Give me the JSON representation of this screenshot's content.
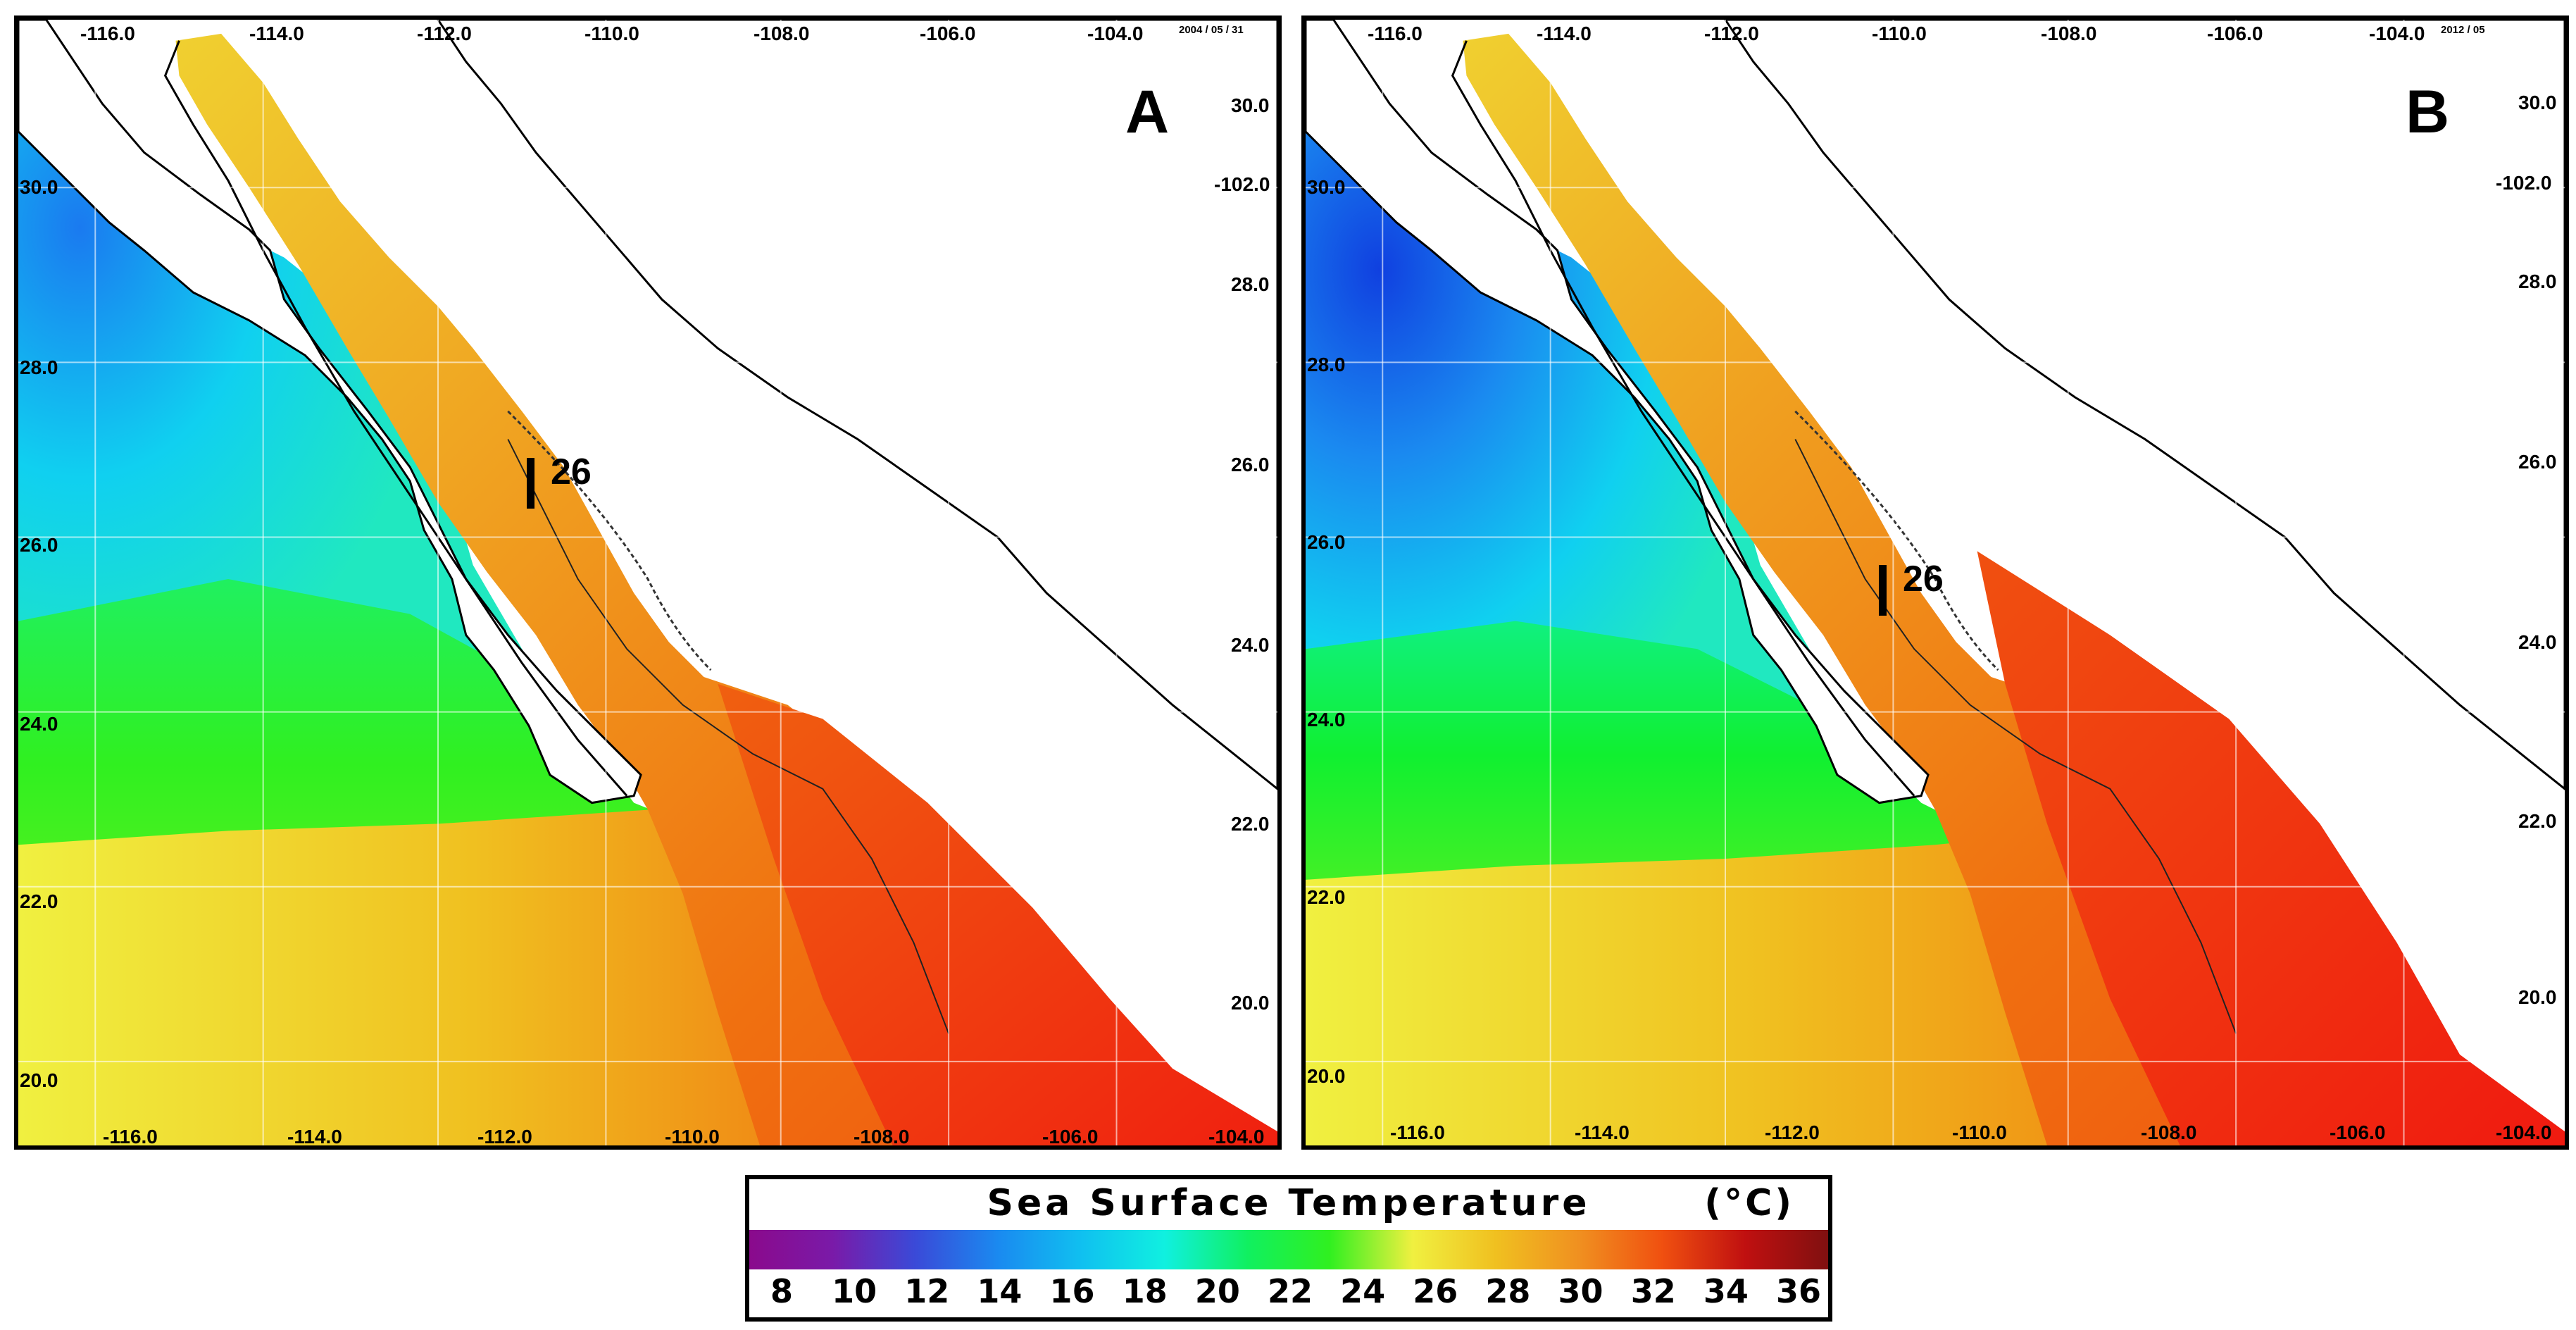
{
  "panels": [
    {
      "letter": "A",
      "date": "2004 / 05 / 31",
      "transect_label": "26",
      "top_lon_labels": [
        "-116.0",
        "-114.0",
        "-112.0",
        "-110.0",
        "-108.0",
        "-106.0",
        "-104.0"
      ],
      "bottom_lon_labels": [
        "-116.0",
        "-114.0",
        "-112.0",
        "-110.0",
        "-108.0",
        "-106.0",
        "-104.0"
      ],
      "left_lat_labels": [
        "30.0",
        "28.0",
        "26.0",
        "24.0",
        "22.0",
        "20.0"
      ],
      "right_lat_labels": [
        "30.0",
        "-102.0",
        "28.0",
        "26.0",
        "24.0",
        "22.0",
        "20.0"
      ]
    },
    {
      "letter": "B",
      "date": "2012 / 05",
      "transect_label": "26",
      "top_lon_labels": [
        "-116.0",
        "-114.0",
        "-112.0",
        "-110.0",
        "-108.0",
        "-106.0",
        "-104.0"
      ],
      "bottom_lon_labels": [
        "-116.0",
        "-114.0",
        "-112.0",
        "-110.0",
        "-108.0",
        "-106.0",
        "-104.0"
      ],
      "left_lat_labels": [
        "30.0",
        "28.0",
        "26.0",
        "24.0",
        "22.0",
        "20.0"
      ],
      "right_lat_labels": [
        "30.0",
        "-102.0",
        "28.0",
        "26.0",
        "24.0",
        "22.0",
        "20.0"
      ]
    }
  ],
  "legend": {
    "title": "Sea Surface Temperature",
    "unit": "(°C)",
    "ticks": [
      "8",
      "10",
      "12",
      "14",
      "16",
      "18",
      "20",
      "22",
      "24",
      "26",
      "28",
      "30",
      "32",
      "34",
      "36"
    ],
    "colors": [
      "#8a0a8c",
      "#7a1aa8",
      "#3a4ad8",
      "#1a8af0",
      "#10c0f0",
      "#10f0e0",
      "#10f060",
      "#30f020",
      "#f0f040",
      "#f0c020",
      "#f09020",
      "#f05010",
      "#c01010",
      "#801010"
    ]
  }
}
